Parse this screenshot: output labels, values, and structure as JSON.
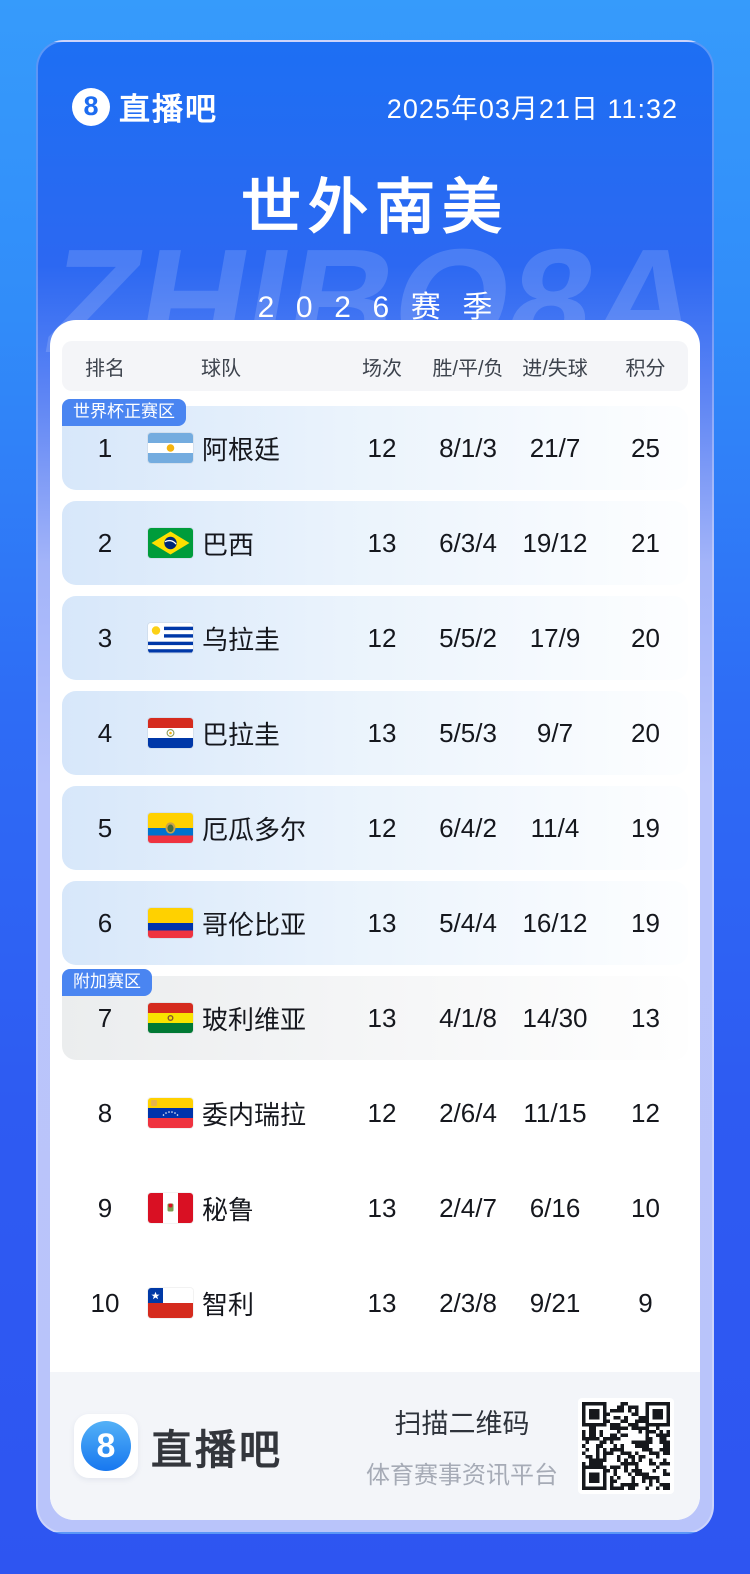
{
  "topbar": {
    "logo_glyph": "8",
    "brand": "直播吧",
    "datetime": "2025年03月21日 11:32"
  },
  "hero": {
    "title": "世外南美",
    "season": "2026赛季",
    "watermark": "ZHIBO8A"
  },
  "table": {
    "headers": [
      "排名",
      "球队",
      "场次",
      "胜/平/负",
      "进/失球",
      "积分"
    ],
    "rows": [
      {
        "rank": "1",
        "team": "阿根廷",
        "flag": "argentina",
        "played": "12",
        "wdl": "8/1/3",
        "goals": "21/7",
        "points": "25",
        "zone": "main",
        "zone_badge": "世界杯正赛区"
      },
      {
        "rank": "2",
        "team": "巴西",
        "flag": "brazil",
        "played": "13",
        "wdl": "6/3/4",
        "goals": "19/12",
        "points": "21",
        "zone": "main"
      },
      {
        "rank": "3",
        "team": "乌拉圭",
        "flag": "uruguay",
        "played": "12",
        "wdl": "5/5/2",
        "goals": "17/9",
        "points": "20",
        "zone": "main"
      },
      {
        "rank": "4",
        "team": "巴拉圭",
        "flag": "paraguay",
        "played": "13",
        "wdl": "5/5/3",
        "goals": "9/7",
        "points": "20",
        "zone": "main"
      },
      {
        "rank": "5",
        "team": "厄瓜多尔",
        "flag": "ecuador",
        "played": "12",
        "wdl": "6/4/2",
        "goals": "11/4",
        "points": "19",
        "zone": "main"
      },
      {
        "rank": "6",
        "team": "哥伦比亚",
        "flag": "colombia",
        "played": "13",
        "wdl": "5/4/4",
        "goals": "16/12",
        "points": "19",
        "zone": "main"
      },
      {
        "rank": "7",
        "team": "玻利维亚",
        "flag": "bolivia",
        "played": "13",
        "wdl": "4/1/8",
        "goals": "14/30",
        "points": "13",
        "zone": "playoff",
        "zone_badge": "附加赛区"
      },
      {
        "rank": "8",
        "team": "委内瑞拉",
        "flag": "venezuela",
        "played": "12",
        "wdl": "2/6/4",
        "goals": "11/15",
        "points": "12",
        "zone": "none"
      },
      {
        "rank": "9",
        "team": "秘鲁",
        "flag": "peru",
        "played": "13",
        "wdl": "2/4/7",
        "goals": "6/16",
        "points": "10",
        "zone": "none"
      },
      {
        "rank": "10",
        "team": "智利",
        "flag": "chile",
        "played": "13",
        "wdl": "2/3/8",
        "goals": "9/21",
        "points": "9",
        "zone": "none"
      }
    ]
  },
  "footer": {
    "logo_glyph": "8",
    "brand": "直播吧",
    "scan_title": "扫描二维码",
    "scan_subtitle": "体育赛事资讯平台"
  },
  "colors": {
    "accent_blue": "#1d6cf0",
    "badge_blue": "#4a85f1",
    "card_top_blue": "#1d6ff3",
    "card_bottom_lavender": "#b9c4fa"
  }
}
